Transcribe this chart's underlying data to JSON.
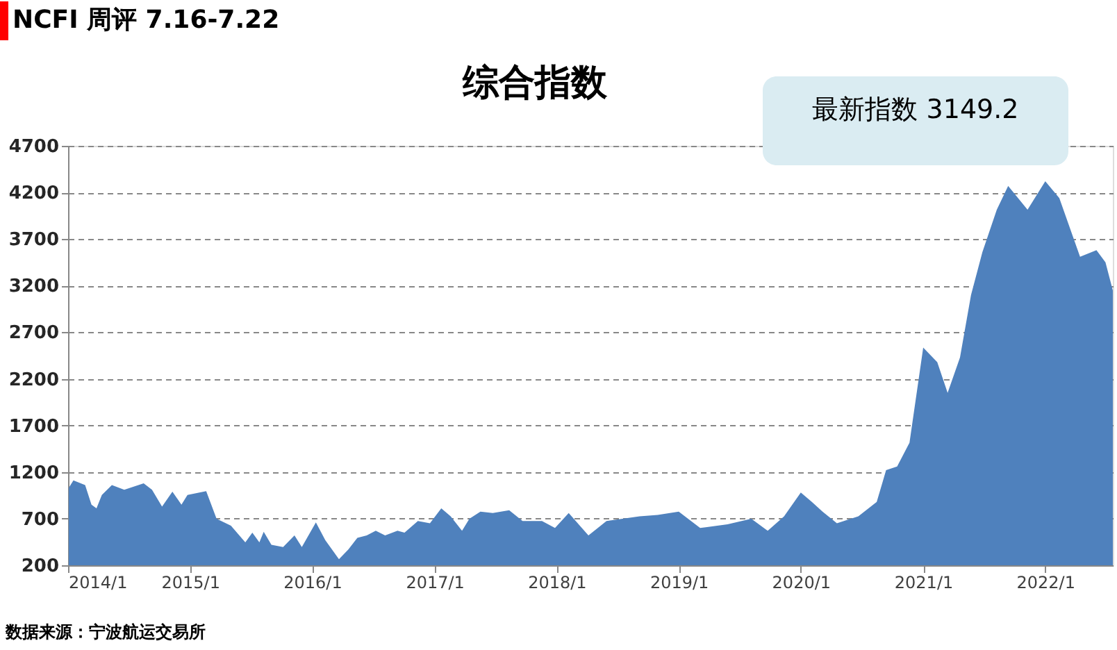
{
  "chart_data": {
    "type": "area",
    "title": "综合指数",
    "x": [
      "2014-01-03",
      "2014-01-17",
      "2014-02-21",
      "2014-03-12",
      "2014-03-27",
      "2014-04-12",
      "2014-05-12",
      "2014-06-18",
      "2014-08-15",
      "2014-09-09",
      "2014-10-09",
      "2014-11-09",
      "2014-12-06",
      "2014-12-24",
      "2015-02-18",
      "2015-03-21",
      "2015-05-03",
      "2015-06-15",
      "2015-07-06",
      "2015-07-27",
      "2015-08-09",
      "2015-09-01",
      "2015-10-06",
      "2015-11-09",
      "2015-12-01",
      "2016-01-12",
      "2016-02-09",
      "2016-03-21",
      "2016-04-18",
      "2016-05-15",
      "2016-06-12",
      "2016-07-09",
      "2016-08-06",
      "2016-09-12",
      "2016-10-03",
      "2016-11-12",
      "2016-12-18",
      "2017-01-21",
      "2017-02-18",
      "2017-03-24",
      "2017-04-15",
      "2017-05-18",
      "2017-06-24",
      "2017-08-12",
      "2017-09-21",
      "2017-11-18",
      "2017-12-27",
      "2018-02-06",
      "2018-04-06",
      "2018-05-30",
      "2018-09-06",
      "2018-10-30",
      "2019-01-01",
      "2019-03-06",
      "2019-05-27",
      "2019-08-06",
      "2019-09-24",
      "2019-11-12",
      "2020-01-01",
      "2020-02-03",
      "2020-03-06",
      "2020-04-18",
      "2020-06-21",
      "2020-08-15",
      "2020-09-12",
      "2020-10-15",
      "2020-11-21",
      "2021-01-01",
      "2021-02-12",
      "2021-03-15",
      "2021-04-21",
      "2021-05-24",
      "2021-06-27",
      "2021-08-09",
      "2021-09-12",
      "2021-11-09",
      "2022-01-01",
      "2022-02-12",
      "2022-04-15",
      "2022-06-03",
      "2022-06-30",
      "2022-07-22"
    ],
    "series": [
      {
        "color": "#4f81bd",
        "values": [
          1030,
          1110,
          1060,
          850,
          810,
          955,
          1060,
          1010,
          1080,
          1010,
          830,
          990,
          850,
          955,
          995,
          700,
          625,
          445,
          550,
          445,
          560,
          420,
          395,
          520,
          395,
          660,
          470,
          265,
          370,
          495,
          520,
          570,
          520,
          570,
          550,
          675,
          650,
          810,
          725,
          570,
          700,
          775,
          760,
          790,
          675,
          675,
          600,
          760,
          520,
          675,
          725,
          740,
          775,
          600,
          640,
          700,
          570,
          725,
          980,
          880,
          775,
          650,
          725,
          880,
          1220,
          1260,
          1515,
          2535,
          2380,
          2050,
          2430,
          3100,
          3560,
          4015,
          4270,
          4015,
          4320,
          4140,
          3510,
          3580,
          3450,
          3149.2
        ]
      }
    ],
    "xlim": [
      "2014-01-01",
      "2022-07-22"
    ],
    "xticks": [
      {
        "value": "2014-01-01",
        "label": "2014/1"
      },
      {
        "value": "2015-01-01",
        "label": "2015/1"
      },
      {
        "value": "2016-01-01",
        "label": "2016/1"
      },
      {
        "value": "2017-01-01",
        "label": "2017/1"
      },
      {
        "value": "2018-01-01",
        "label": "2018/1"
      },
      {
        "value": "2019-01-01",
        "label": "2019/1"
      },
      {
        "value": "2020-01-01",
        "label": "2020/1"
      },
      {
        "value": "2021-01-01",
        "label": "2021/1"
      },
      {
        "value": "2022-01-01",
        "label": "2022/1"
      }
    ],
    "ylim": [
      200,
      4700
    ],
    "yticks": [
      200,
      700,
      1200,
      1700,
      2200,
      2700,
      3200,
      3700,
      4200,
      4700
    ],
    "grid": "y",
    "annotations": [
      "NCFI 周评 7.16-7.22",
      "最新指数 3149.2",
      "数据来源：宁波航运交易所"
    ]
  }
}
